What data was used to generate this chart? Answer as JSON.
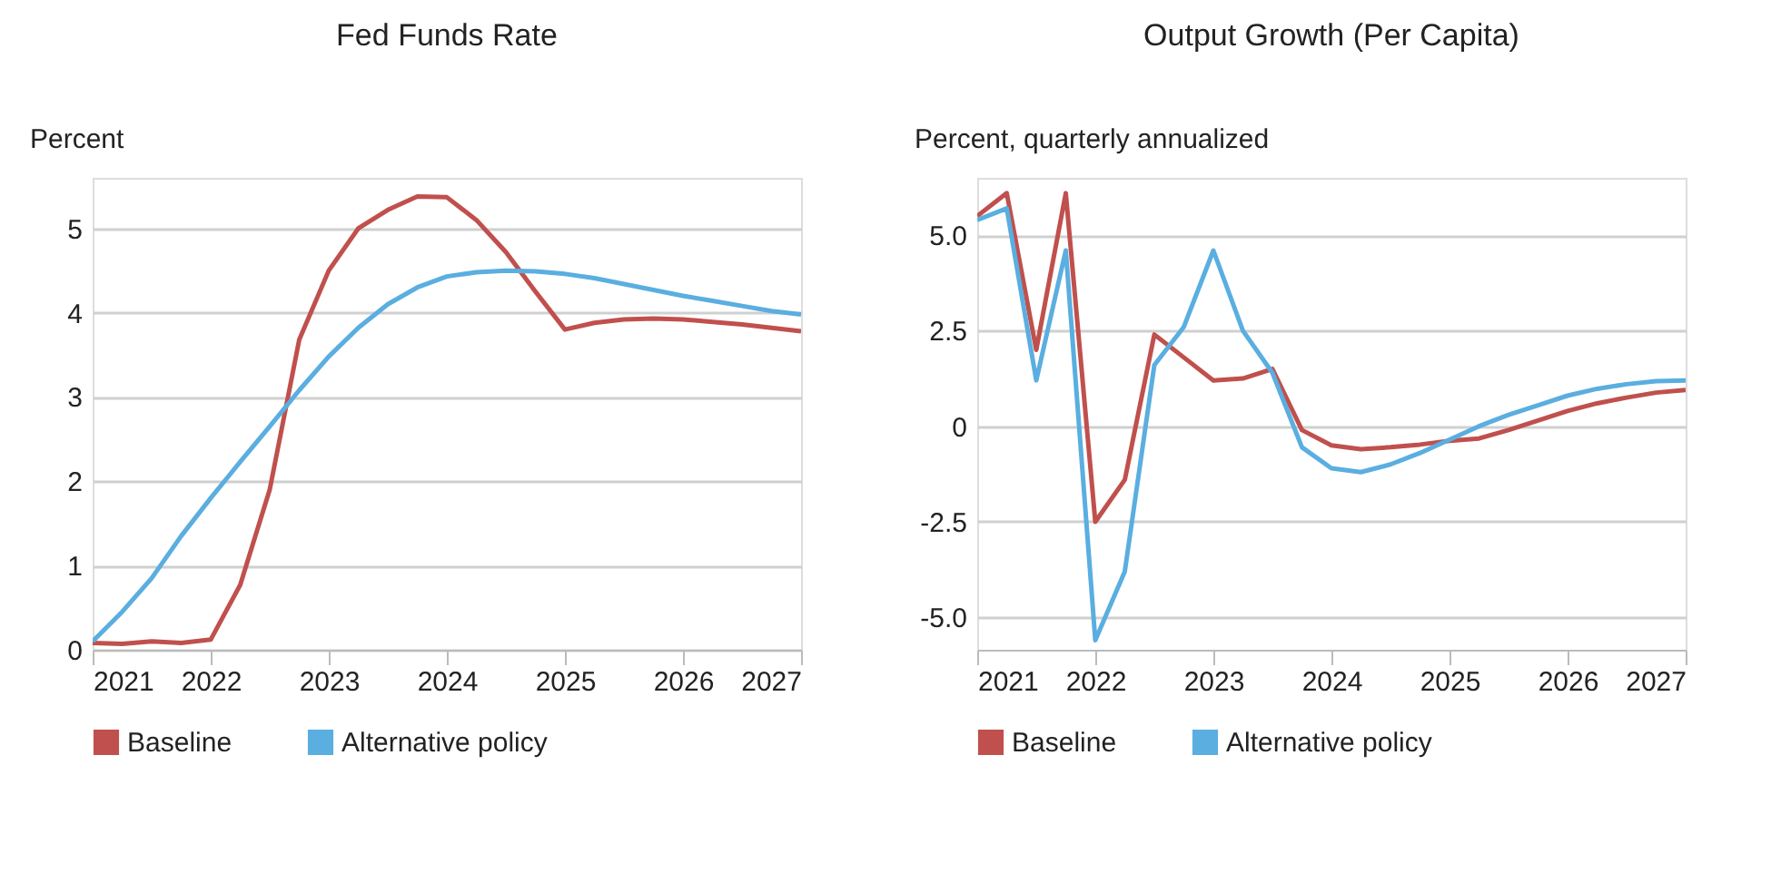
{
  "chart_data": [
    {
      "type": "line",
      "title": "Fed Funds Rate",
      "ylabel": "Percent",
      "x": [
        2021,
        2021.25,
        2021.5,
        2021.75,
        2022,
        2022.25,
        2022.5,
        2022.75,
        2023,
        2023.25,
        2023.5,
        2023.75,
        2024,
        2024.25,
        2024.5,
        2024.75,
        2025,
        2025.25,
        2025.5,
        2025.75,
        2026,
        2026.25,
        2026.5,
        2026.75,
        2027
      ],
      "series": [
        {
          "name": "Baseline",
          "color": "#c0504d",
          "values": [
            0.08,
            0.07,
            0.1,
            0.08,
            0.12,
            0.77,
            1.9,
            3.68,
            4.5,
            5.0,
            5.22,
            5.38,
            5.37,
            5.1,
            4.72,
            4.25,
            3.8,
            3.88,
            3.92,
            3.93,
            3.92,
            3.89,
            3.86,
            3.82,
            3.78
          ]
        },
        {
          "name": "Alternative policy",
          "color": "#5aaee0",
          "values": [
            0.1,
            0.45,
            0.85,
            1.35,
            1.8,
            2.23,
            2.65,
            3.08,
            3.48,
            3.82,
            4.1,
            4.3,
            4.43,
            4.48,
            4.5,
            4.49,
            4.46,
            4.41,
            4.34,
            4.27,
            4.2,
            4.14,
            4.08,
            4.02,
            3.98
          ]
        }
      ],
      "xlim": [
        2021,
        2027
      ],
      "xticks": [
        2021,
        2022,
        2023,
        2024,
        2025,
        2026,
        2027
      ],
      "ylim": [
        0,
        5.6
      ],
      "yticks": [
        0,
        1,
        2,
        3,
        4,
        5
      ],
      "grid": "y",
      "legend": "bottom",
      "marker": "none",
      "line_style": "solid"
    },
    {
      "type": "line",
      "title": "Output Growth (Per Capita)",
      "ylabel": "Percent, quarterly annualized",
      "x": [
        2021,
        2021.25,
        2021.5,
        2021.75,
        2022,
        2022.25,
        2022.5,
        2022.75,
        2023,
        2023.25,
        2023.5,
        2023.75,
        2024,
        2024.25,
        2024.5,
        2024.75,
        2025,
        2025.25,
        2025.5,
        2025.75,
        2026,
        2026.25,
        2026.5,
        2026.75,
        2027
      ],
      "series": [
        {
          "name": "Baseline",
          "color": "#c0504d",
          "values": [
            5.5,
            6.1,
            2.0,
            6.1,
            -2.5,
            -1.4,
            2.4,
            1.8,
            1.2,
            1.25,
            1.5,
            -0.1,
            -0.5,
            -0.6,
            -0.55,
            -0.48,
            -0.38,
            -0.32,
            -0.1,
            0.15,
            0.4,
            0.6,
            0.75,
            0.88,
            0.95
          ]
        },
        {
          "name": "Alternative policy",
          "color": "#5aaee0",
          "values": [
            5.4,
            5.7,
            1.2,
            4.6,
            -5.6,
            -3.8,
            1.6,
            2.6,
            4.6,
            2.5,
            1.4,
            -0.55,
            -1.1,
            -1.2,
            -1.0,
            -0.7,
            -0.35,
            0.0,
            0.3,
            0.55,
            0.8,
            0.98,
            1.1,
            1.18,
            1.2
          ]
        }
      ],
      "xlim": [
        2021,
        2027
      ],
      "xticks": [
        2021,
        2022,
        2023,
        2024,
        2025,
        2026,
        2027
      ],
      "ylim": [
        -5.85,
        6.5
      ],
      "yticks": [
        {
          "value": -5,
          "label": "-5.0"
        },
        -2.5,
        0,
        2.5,
        {
          "value": 5,
          "label": "5.0"
        }
      ],
      "grid": "y",
      "legend": "bottom",
      "marker": "none",
      "line_style": "solid"
    }
  ]
}
